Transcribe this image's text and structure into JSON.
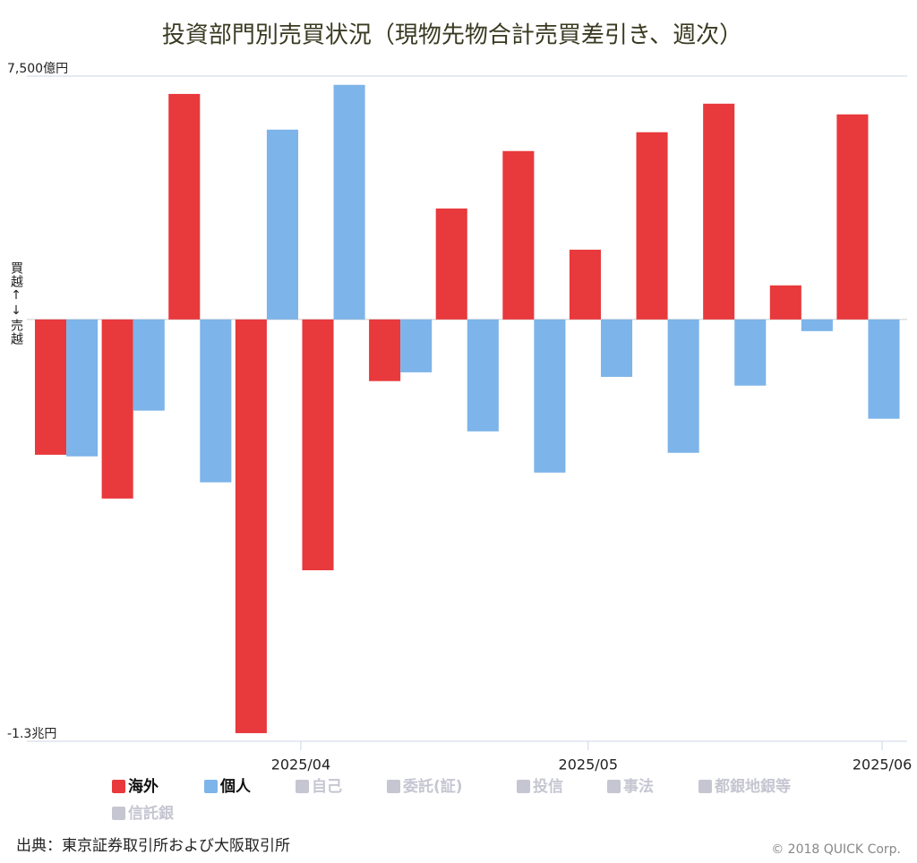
{
  "chart_data": {
    "type": "bar",
    "title": "投資部門別売買状況（現物先物合計売買差引き、週次）",
    "ylabel": "買越↑↓売越",
    "categories": [
      null,
      null,
      null,
      null,
      null,
      null,
      null,
      null,
      null,
      null,
      null,
      null,
      null
    ],
    "series": [
      {
        "name": "海外",
        "color": "#e8393c",
        "values": [
          -4170,
          -5520,
          6950,
          -12750,
          -7730,
          -1900,
          3420,
          5190,
          2150,
          5770,
          6650,
          1050,
          6320
        ]
      },
      {
        "name": "個人",
        "color": "#7db4ea",
        "values": [
          -4220,
          -2810,
          -5020,
          5850,
          7230,
          -1630,
          -3450,
          -4720,
          -1770,
          -4110,
          -2040,
          -360,
          -3060
        ]
      }
    ],
    "legend_inactive": [
      "自己",
      "委託(証)",
      "投信",
      "事法",
      "都銀地銀等",
      "信託銀"
    ],
    "ylim": [
      -13000,
      7500
    ],
    "yticks": [
      {
        "value": -13000,
        "label": "-1.3兆円"
      },
      {
        "value": 7500,
        "label": "7,500億円"
      }
    ],
    "xticks": [
      {
        "value": 4.1,
        "label": "2025/04"
      },
      {
        "value": 8.4,
        "label": "2025/05"
      },
      {
        "value": 12.8,
        "label": "2025/06"
      }
    ],
    "source": "出典：東京証券取引所および大阪取引所",
    "credit": "© 2018 QUICK Corp."
  }
}
